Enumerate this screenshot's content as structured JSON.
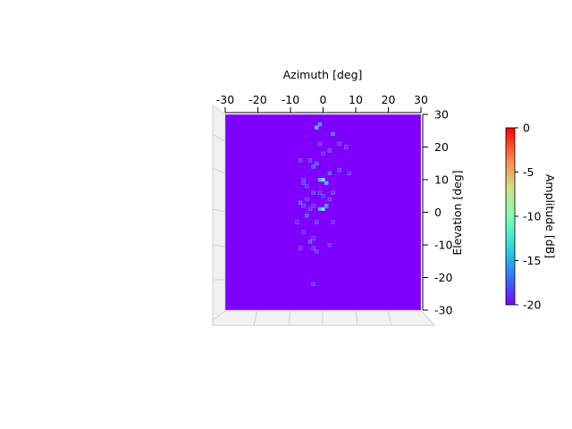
{
  "chart_data": {
    "type": "heatmap",
    "xlabel": "Azimuth [deg]",
    "ylabel": "Elevation [deg]",
    "xlim": [
      -30,
      30
    ],
    "ylim": [
      -30,
      30
    ],
    "xticks": [
      -30,
      -20,
      -10,
      0,
      10,
      20,
      30
    ],
    "yticks": [
      30,
      20,
      10,
      0,
      -10,
      -20,
      -30
    ],
    "xtick_labels": [
      "-30",
      "-20",
      "-10",
      "0",
      "10",
      "20",
      "30"
    ],
    "ytick_labels": [
      "30",
      "20",
      "10",
      "0",
      "-10",
      "-20",
      "-30"
    ],
    "background_value": -20,
    "colorbar": {
      "label": "Amplitude [dB]",
      "range": [
        -20,
        0
      ],
      "ticks": [
        0,
        -5,
        -10,
        -15,
        -20
      ],
      "tick_labels": [
        "0",
        "-5",
        "-10",
        "-15",
        "-20"
      ],
      "colormap": "rainbow",
      "colors": [
        "#8000ff",
        "#2c7ef7",
        "#2adddd",
        "#80ffb4",
        "#d4dd80",
        "#ff7e41",
        "#ff0000"
      ]
    },
    "cells": [
      {
        "x": 0,
        "y": 10,
        "value": -11
      },
      {
        "x": 0,
        "y": 1,
        "value": -11
      },
      {
        "x": -1,
        "y": 10,
        "value": -14
      },
      {
        "x": 1,
        "y": 9,
        "value": -14
      },
      {
        "x": -1,
        "y": 1,
        "value": -14
      },
      {
        "x": 1,
        "y": 2,
        "value": -15
      },
      {
        "x": -2,
        "y": 26,
        "value": -14
      },
      {
        "x": -1,
        "y": 27,
        "value": -15
      },
      {
        "x": 3,
        "y": 24,
        "value": -16
      },
      {
        "x": -3,
        "y": 14,
        "value": -17
      },
      {
        "x": -2,
        "y": 15,
        "value": -17
      },
      {
        "x": 2,
        "y": 12,
        "value": -17
      },
      {
        "x": -7,
        "y": 3,
        "value": -17
      },
      {
        "x": -5,
        "y": -1,
        "value": -17
      },
      {
        "x": -4,
        "y": -9,
        "value": -17
      },
      {
        "x": 3,
        "y": 6,
        "value": -18
      },
      {
        "x": -3,
        "y": 6,
        "value": -18
      },
      {
        "x": -2,
        "y": -3,
        "value": -18
      },
      {
        "x": -3,
        "y": -22,
        "value": -18
      },
      {
        "x": 2,
        "y": 19,
        "value": -18
      },
      {
        "x": -6,
        "y": 9,
        "value": -18
      },
      {
        "x": -6,
        "y": 10,
        "value": -18.5
      },
      {
        "x": -5,
        "y": 8,
        "value": -18.5
      },
      {
        "x": -5,
        "y": 4,
        "value": -18.5
      },
      {
        "x": -6,
        "y": 2,
        "value": -18.5
      },
      {
        "x": -4,
        "y": 1,
        "value": -18.5
      },
      {
        "x": -3,
        "y": 2,
        "value": -18.5
      },
      {
        "x": -8,
        "y": -3,
        "value": -18.5
      },
      {
        "x": -6,
        "y": -6,
        "value": -18.5
      },
      {
        "x": -3,
        "y": -8,
        "value": -18.5
      },
      {
        "x": -3,
        "y": -11,
        "value": -18.5
      },
      {
        "x": -2,
        "y": -12,
        "value": -18.5
      },
      {
        "x": -1,
        "y": 21,
        "value": -18.5
      },
      {
        "x": 0,
        "y": 18,
        "value": -18.5
      },
      {
        "x": 5,
        "y": 21,
        "value": -18.5
      },
      {
        "x": 7,
        "y": 20,
        "value": -18.5
      },
      {
        "x": 5,
        "y": 13,
        "value": -18.5
      },
      {
        "x": 8,
        "y": 12,
        "value": -18.5
      },
      {
        "x": -7,
        "y": 16,
        "value": -18.5
      },
      {
        "x": 3,
        "y": -3,
        "value": -18.5
      },
      {
        "x": 2,
        "y": -10,
        "value": -18.5
      },
      {
        "x": -4,
        "y": 16,
        "value": -18.5
      },
      {
        "x": -7,
        "y": -11,
        "value": -18.5
      },
      {
        "x": 0,
        "y": 5,
        "value": -18.5
      },
      {
        "x": -1,
        "y": 6,
        "value": -18.5
      },
      {
        "x": 2,
        "y": 4,
        "value": -18.5
      }
    ]
  }
}
